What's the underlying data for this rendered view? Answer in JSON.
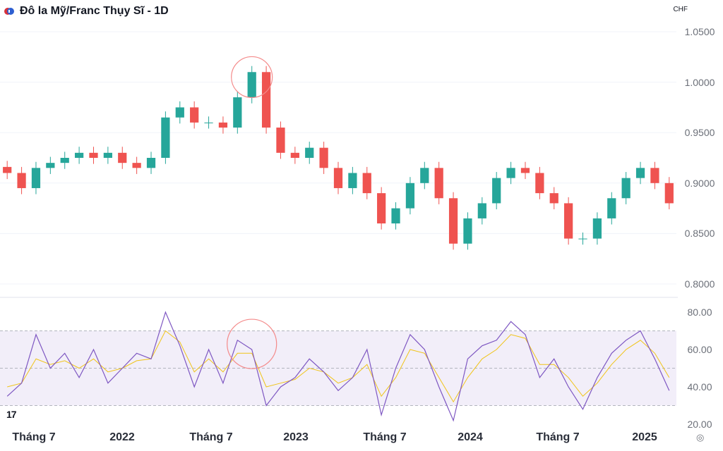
{
  "chart_data": [
    {
      "type": "candlestick",
      "title": "Đô la Mỹ/Franc Thụy Sĩ - 1D",
      "currency": "CHF",
      "ylim": [
        0.8,
        1.05
      ],
      "y_ticks": [
        "1.0500",
        "1.0000",
        "0.9500",
        "0.9000",
        "0.8500",
        "0.8000"
      ],
      "x_labels": [
        "Tháng 7",
        "2022",
        "Tháng 7",
        "2023",
        "Tháng 7",
        "2024",
        "Tháng 7",
        "2025"
      ],
      "x": [
        "2021-05",
        "2021-06",
        "2021-07",
        "2021-08",
        "2021-09",
        "2021-10",
        "2021-11",
        "2021-12",
        "2022-01",
        "2022-02",
        "2022-03",
        "2022-04",
        "2022-05",
        "2022-06",
        "2022-07",
        "2022-08",
        "2022-09",
        "2022-10",
        "2022-11",
        "2022-12",
        "2023-01",
        "2023-02",
        "2023-03",
        "2023-04",
        "2023-05",
        "2023-06",
        "2023-07",
        "2023-08",
        "2023-09",
        "2023-10",
        "2023-11",
        "2023-12",
        "2024-01",
        "2024-02",
        "2024-03",
        "2024-04",
        "2024-05",
        "2024-06",
        "2024-07",
        "2024-08",
        "2024-09",
        "2024-10",
        "2024-11",
        "2024-12",
        "2025-01",
        "2025-02",
        "2025-03"
      ],
      "close": [
        0.91,
        0.895,
        0.915,
        0.92,
        0.925,
        0.93,
        0.925,
        0.93,
        0.92,
        0.915,
        0.925,
        0.965,
        0.975,
        0.96,
        0.96,
        0.955,
        0.985,
        1.01,
        0.955,
        0.93,
        0.925,
        0.935,
        0.915,
        0.895,
        0.91,
        0.89,
        0.86,
        0.875,
        0.9,
        0.915,
        0.885,
        0.84,
        0.865,
        0.88,
        0.905,
        0.915,
        0.91,
        0.89,
        0.88,
        0.845,
        0.845,
        0.865,
        0.885,
        0.905,
        0.915,
        0.9,
        0.88
      ],
      "annotations": [
        {
          "type": "circle",
          "date": "2022-10",
          "value": 1.005
        }
      ]
    },
    {
      "type": "line",
      "indicator": "RSI",
      "ylim": [
        20,
        85
      ],
      "y_ticks": [
        "80.00",
        "60.00",
        "40.00",
        "20.00"
      ],
      "band": [
        30,
        70
      ],
      "midline": 50,
      "x": [
        "2021-05",
        "2021-06",
        "2021-07",
        "2021-08",
        "2021-09",
        "2021-10",
        "2021-11",
        "2021-12",
        "2022-01",
        "2022-02",
        "2022-03",
        "2022-04",
        "2022-05",
        "2022-06",
        "2022-07",
        "2022-08",
        "2022-09",
        "2022-10",
        "2022-11",
        "2022-12",
        "2023-01",
        "2023-02",
        "2023-03",
        "2023-04",
        "2023-05",
        "2023-06",
        "2023-07",
        "2023-08",
        "2023-09",
        "2023-10",
        "2023-11",
        "2023-12",
        "2024-01",
        "2024-02",
        "2024-03",
        "2024-04",
        "2024-05",
        "2024-06",
        "2024-07",
        "2024-08",
        "2024-09",
        "2024-10",
        "2024-11",
        "2024-12",
        "2025-01",
        "2025-02",
        "2025-03"
      ],
      "series": [
        {
          "values": [
            35,
            42,
            68,
            50,
            58,
            45,
            60,
            42,
            50,
            58,
            55,
            80,
            62,
            40,
            60,
            42,
            65,
            60,
            30,
            40,
            45,
            55,
            48,
            38,
            45,
            60,
            25,
            50,
            68,
            60,
            40,
            22,
            55,
            62,
            65,
            75,
            68,
            45,
            55,
            40,
            28,
            45,
            58,
            65,
            70,
            55,
            38
          ]
        },
        {
          "values": [
            40,
            42,
            55,
            52,
            54,
            50,
            55,
            48,
            50,
            54,
            55,
            70,
            64,
            48,
            55,
            48,
            58,
            58,
            40,
            42,
            44,
            50,
            48,
            42,
            45,
            52,
            35,
            45,
            60,
            58,
            45,
            32,
            45,
            55,
            60,
            68,
            66,
            52,
            52,
            45,
            35,
            42,
            52,
            60,
            65,
            58,
            45
          ]
        }
      ],
      "annotations": [
        {
          "type": "circle",
          "date": "2022-10",
          "value": 63
        }
      ]
    }
  ]
}
